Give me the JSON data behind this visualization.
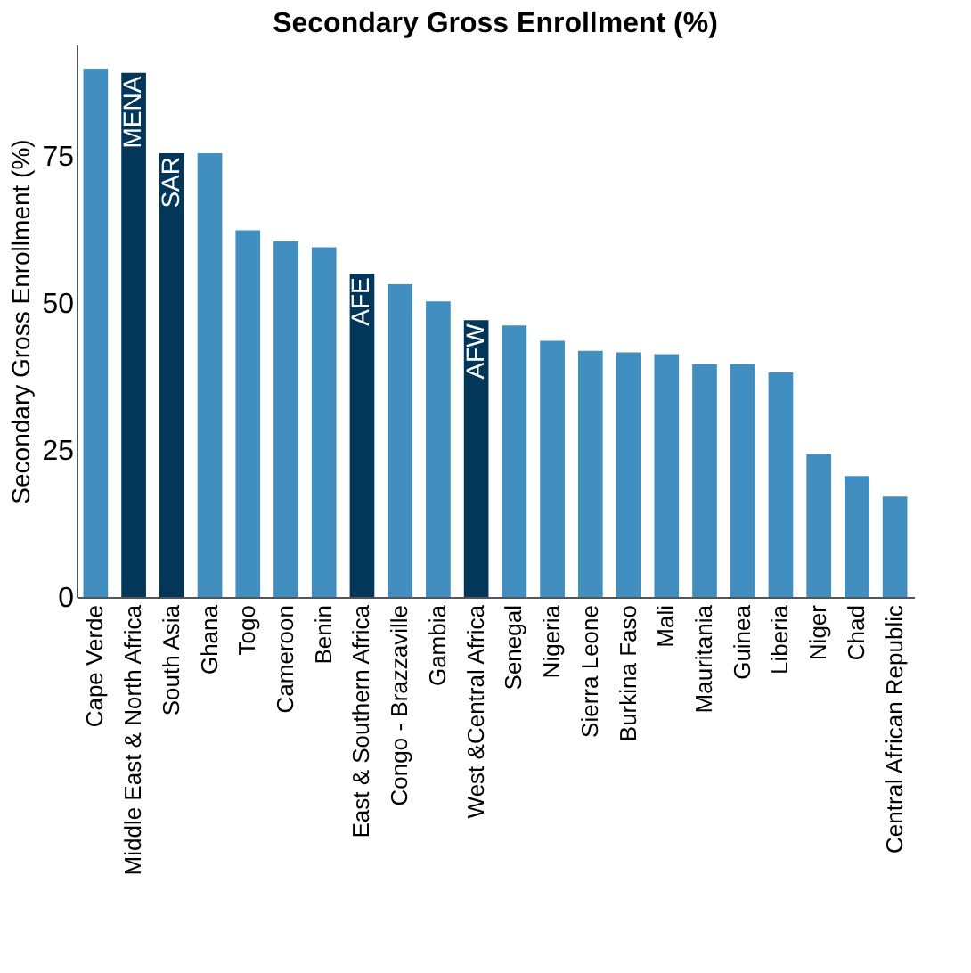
{
  "chart_data": {
    "type": "bar",
    "title": "Secondary Gross Enrollment (%)",
    "ylabel": "Secondary Gross Enrollment (%)",
    "categories": [
      "Cape Verde",
      "Middle East & North Africa",
      "South Asia",
      "Ghana",
      "Togo",
      "Cameroon",
      "Benin",
      "East & Southern Africa",
      "Congo - Brazzaville",
      "Gambia",
      "West &Central Africa",
      "Senegal",
      "Nigeria",
      "Sierra Leone",
      "Burkina Faso",
      "Mali",
      "Mauritania",
      "Guinea",
      "Liberia",
      "Niger",
      "Chad",
      "Central African Republic"
    ],
    "values": [
      89.9,
      89.2,
      75.5,
      75.5,
      62.4,
      60.5,
      59.5,
      55.0,
      53.2,
      50.3,
      47.1,
      46.2,
      43.6,
      41.9,
      41.6,
      41.3,
      39.6,
      39.6,
      38.2,
      24.3,
      20.6,
      17.1
    ],
    "colors": [
      "#418fc1",
      "#03375a",
      "#03375a",
      "#418fc1",
      "#418fc1",
      "#418fc1",
      "#418fc1",
      "#03375a",
      "#418fc1",
      "#418fc1",
      "#03375a",
      "#418fc1",
      "#418fc1",
      "#418fc1",
      "#418fc1",
      "#418fc1",
      "#418fc1",
      "#418fc1",
      "#418fc1",
      "#418fc1",
      "#418fc1",
      "#418fc1"
    ],
    "annotations": [
      {
        "text": "MENA",
        "x": "Middle East & North Africa",
        "y": 89.2
      },
      {
        "text": "SAR",
        "x": "South Asia",
        "y": 75.5
      },
      {
        "text": "AFE",
        "x": "East & Southern Africa",
        "y": 55.0
      },
      {
        "text": "AFW",
        "x": "West &Central Africa",
        "y": 47.1
      }
    ],
    "ylim": [
      0,
      94
    ],
    "yticks": [
      0,
      25,
      50,
      75
    ],
    "grid": false
  }
}
